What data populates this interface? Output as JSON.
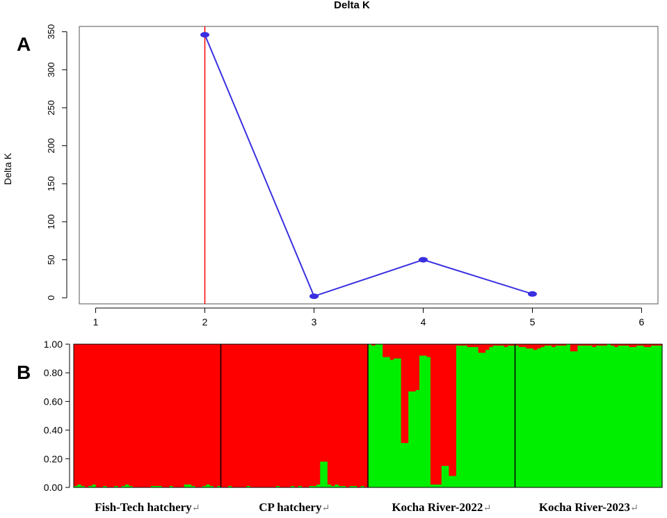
{
  "chart_data": [
    {
      "type": "line",
      "panel_label": "A",
      "title": "Delta K",
      "ylabel": "Delta K",
      "xlabel": "",
      "xlim": [
        0.85,
        6.15
      ],
      "ylim": [
        -8,
        357
      ],
      "x_ticks": [
        "1",
        "2",
        "3",
        "4",
        "5",
        "6"
      ],
      "y_ticks": [
        "0",
        "50",
        "100",
        "150",
        "200",
        "250",
        "300",
        "350"
      ],
      "x": [
        2,
        3,
        4,
        5
      ],
      "series": [
        {
          "values": [
            346,
            2,
            50,
            5
          ]
        }
      ],
      "vline_x": 2,
      "grid": false,
      "colors": {
        "line": "#3a2fe0",
        "point": "#3a2fe0",
        "vline": "#ff0000"
      }
    },
    {
      "type": "bar",
      "stacked": true,
      "panel_label": "B",
      "ylim": [
        0,
        1
      ],
      "y_ticks": [
        "0.00",
        "0.20",
        "0.40",
        "0.60",
        "0.80",
        "1.00"
      ],
      "groups": [
        "Fish-Tech hatchery",
        "CP hatchery",
        "Kocha River-2022",
        "Kocha River-2023"
      ],
      "group_label_suffix": "↵",
      "colors": {
        "cluster1": "#ff0000",
        "cluster2": "#00ee00"
      },
      "series": [
        {
          "cluster": 2,
          "groups": [
            [
              0.01,
              0.02,
              0.01,
              0.0,
              0.01,
              0.02,
              0.0,
              0.0,
              0.01,
              0.0,
              0.0,
              0.01,
              0.0,
              0.01,
              0.02,
              0.01,
              0.0,
              0.0,
              0.0,
              0.0,
              0.0,
              0.01,
              0.01,
              0.01,
              0.0,
              0.0,
              0.01,
              0.0,
              0.0,
              0.0,
              0.02,
              0.02,
              0.01,
              0.0,
              0.0,
              0.01,
              0.02,
              0.01,
              0.0,
              0.01
            ],
            [
              0.0,
              0.0,
              0.01,
              0.0,
              0.0,
              0.0,
              0.0,
              0.01,
              0.0,
              0.0,
              0.0,
              0.0,
              0.0,
              0.0,
              0.0,
              0.01,
              0.0,
              0.0,
              0.0,
              0.01,
              0.0,
              0.01,
              0.0,
              0.0,
              0.01,
              0.01,
              0.02,
              0.18,
              0.18,
              0.02,
              0.01,
              0.02,
              0.01,
              0.01,
              0.0,
              0.01,
              0.01,
              0.0,
              0.01,
              0.0
            ],
            [
              1.0,
              0.99,
              1.0,
              1.0,
              0.91,
              0.91,
              0.89,
              0.9,
              0.9,
              0.31,
              0.31,
              0.67,
              0.67,
              0.68,
              0.92,
              0.92,
              0.91,
              0.02,
              0.02,
              0.02,
              0.15,
              0.15,
              0.08,
              0.08,
              0.99,
              0.99,
              0.99,
              0.98,
              0.98,
              0.98,
              0.94,
              0.94,
              0.96,
              0.98,
              0.99,
              0.99,
              0.99,
              0.98,
              0.99,
              0.99
            ],
            [
              0.99,
              0.98,
              0.98,
              0.97,
              0.97,
              0.96,
              0.97,
              0.98,
              0.99,
              0.99,
              0.98,
              0.99,
              0.99,
              0.99,
              1.0,
              0.95,
              0.95,
              0.99,
              0.99,
              0.99,
              0.99,
              0.98,
              0.99,
              0.99,
              0.99,
              1.0,
              0.99,
              0.98,
              0.99,
              0.99,
              0.99,
              0.98,
              0.98,
              0.99,
              0.99,
              0.98,
              0.98,
              0.99,
              0.99,
              0.99
            ]
          ]
        }
      ]
    }
  ]
}
